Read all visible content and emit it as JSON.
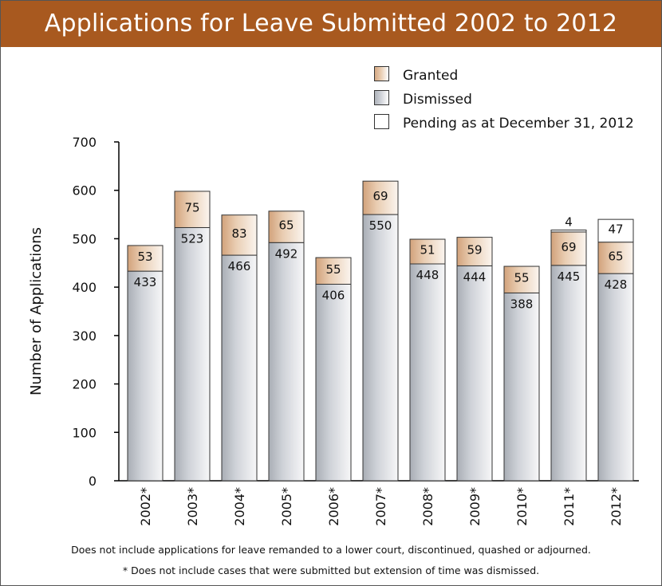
{
  "colors": {
    "title_bar": "#a8591f",
    "granted": "#e9cdb2",
    "dismissed": "#cfd2d8",
    "pending": "#ffffff"
  },
  "legend": {
    "granted": "Granted",
    "dismissed": "Dismissed",
    "pending": "Pending as at December 31, 2012"
  },
  "footnotes": {
    "line1": "Does not include applications for leave remanded to a lower court, discontinued, quashed or adjourned.",
    "line2": "* Does not include cases that were submitted but extension of time was dismissed."
  },
  "chart_data": {
    "type": "bar",
    "stacked": true,
    "title": "Applications for Leave Submitted 2002 to 2012",
    "xlabel": "",
    "ylabel": "Number of Applications",
    "ylim": [
      0,
      700
    ],
    "yticks": [
      0,
      100,
      200,
      300,
      400,
      500,
      600,
      700
    ],
    "categories": [
      "2002*",
      "2003*",
      "2004*",
      "2005*",
      "2006*",
      "2007*",
      "2008*",
      "2009*",
      "2010*",
      "2011*",
      "2012*"
    ],
    "series": [
      {
        "name": "Dismissed",
        "values": [
          433,
          523,
          466,
          492,
          406,
          550,
          448,
          444,
          388,
          445,
          428
        ]
      },
      {
        "name": "Granted",
        "values": [
          53,
          75,
          83,
          65,
          55,
          69,
          51,
          59,
          55,
          69,
          65
        ]
      },
      {
        "name": "Pending as at December 31, 2012",
        "values": [
          0,
          0,
          0,
          0,
          0,
          0,
          0,
          0,
          0,
          4,
          47
        ]
      }
    ],
    "legend_position": "top-right",
    "grid": false
  }
}
